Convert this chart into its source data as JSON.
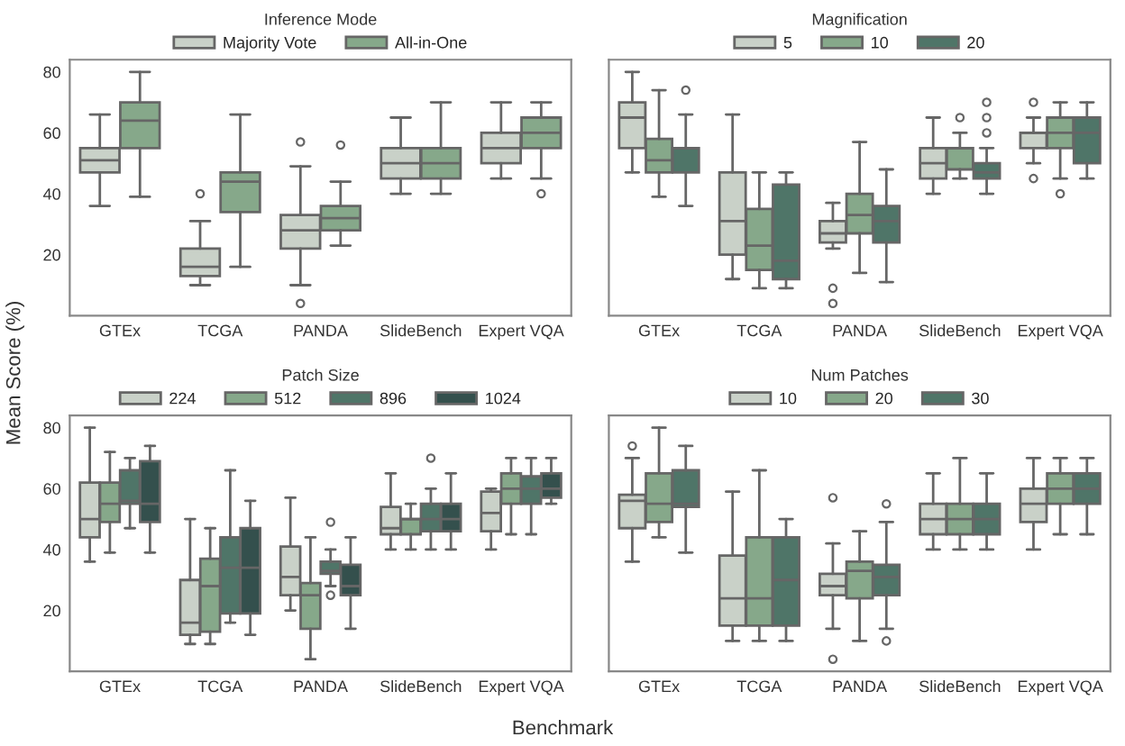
{
  "chart_data": [
    {
      "type": "box",
      "legend_title": "Inference Mode",
      "xlabel": "Benchmark",
      "ylabel": "Mean Score (%)",
      "categories": [
        "GTEx",
        "TCGA",
        "PANDA",
        "SlideBench",
        "Expert VQA"
      ],
      "ylim": [
        0,
        84
      ],
      "yticks": [
        20,
        40,
        60,
        80
      ],
      "grid": false,
      "legend": "top",
      "series": [
        {
          "name": "Majority Vote",
          "color": "#c9d1c8",
          "boxes": [
            {
              "low": 36,
              "q1": 47,
              "median": 51,
              "q3": 55,
              "high": 66
            },
            {
              "low": 10,
              "q1": 13,
              "median": 16,
              "q3": 22,
              "high": 31,
              "outliers": [
                40
              ]
            },
            {
              "low": 10,
              "q1": 22,
              "median": 28,
              "q3": 33,
              "high": 49,
              "outliers": [
                57,
                4
              ]
            },
            {
              "low": 40,
              "q1": 45,
              "median": 50,
              "q3": 55,
              "high": 65
            },
            {
              "low": 45,
              "q1": 50,
              "median": 55,
              "q3": 60,
              "high": 70
            }
          ]
        },
        {
          "name": "All-in-One",
          "color": "#86a88a",
          "boxes": [
            {
              "low": 39,
              "q1": 55,
              "median": 64,
              "q3": 70,
              "high": 80
            },
            {
              "low": 16,
              "q1": 34,
              "median": 44,
              "q3": 47,
              "high": 66
            },
            {
              "low": 23,
              "q1": 28,
              "median": 32,
              "q3": 36,
              "high": 44,
              "outliers": [
                56
              ]
            },
            {
              "low": 40,
              "q1": 45,
              "median": 50,
              "q3": 55,
              "high": 70
            },
            {
              "low": 45,
              "q1": 55,
              "median": 60,
              "q3": 65,
              "high": 70,
              "outliers": [
                40
              ]
            }
          ]
        }
      ]
    },
    {
      "type": "box",
      "legend_title": "Magnification",
      "categories": [
        "GTEx",
        "TCGA",
        "PANDA",
        "SlideBench",
        "Expert VQA"
      ],
      "ylim": [
        0,
        84
      ],
      "yticks": [
        20,
        40,
        60,
        80
      ],
      "grid": false,
      "legend": "top",
      "tick_labels": "x",
      "series": [
        {
          "name": "5",
          "color": "#c9d1c8",
          "boxes": [
            {
              "low": 47,
              "q1": 55,
              "median": 65,
              "q3": 70,
              "high": 80
            },
            {
              "low": 12,
              "q1": 20,
              "median": 31,
              "q3": 47,
              "high": 66
            },
            {
              "low": 22,
              "q1": 24,
              "median": 27,
              "q3": 31,
              "high": 37,
              "outliers": [
                9,
                4
              ]
            },
            {
              "low": 40,
              "q1": 45,
              "median": 50,
              "q3": 55,
              "high": 65
            },
            {
              "low": 50,
              "q1": 55,
              "median": 60,
              "q3": 60,
              "high": 65,
              "outliers": [
                70,
                45
              ]
            }
          ]
        },
        {
          "name": "10",
          "color": "#86a88a",
          "boxes": [
            {
              "low": 39,
              "q1": 47,
              "median": 51,
              "q3": 58,
              "high": 74
            },
            {
              "low": 9,
              "q1": 15,
              "median": 23,
              "q3": 35,
              "high": 47
            },
            {
              "low": 14,
              "q1": 27,
              "median": 33,
              "q3": 40,
              "high": 57
            },
            {
              "low": 45,
              "q1": 48,
              "median": 55,
              "q3": 55,
              "high": 60,
              "outliers": [
                65
              ]
            },
            {
              "low": 45,
              "q1": 55,
              "median": 60,
              "q3": 65,
              "high": 70,
              "outliers": [
                40
              ]
            }
          ]
        },
        {
          "name": "20",
          "color": "#4f7568",
          "boxes": [
            {
              "low": 36,
              "q1": 47,
              "median": 55,
              "q3": 55,
              "high": 66,
              "outliers": [
                74
              ]
            },
            {
              "low": 9,
              "q1": 12,
              "median": 18,
              "q3": 43,
              "high": 47
            },
            {
              "low": 11,
              "q1": 24,
              "median": 31,
              "q3": 36,
              "high": 48
            },
            {
              "low": 40,
              "q1": 45,
              "median": 47,
              "q3": 50,
              "high": 55,
              "outliers": [
                60,
                65,
                70
              ]
            },
            {
              "low": 45,
              "q1": 50,
              "median": 60,
              "q3": 65,
              "high": 70
            }
          ]
        }
      ]
    },
    {
      "type": "box",
      "legend_title": "Patch Size",
      "categories": [
        "GTEx",
        "TCGA",
        "PANDA",
        "SlideBench",
        "Expert VQA"
      ],
      "ylim": [
        0,
        84
      ],
      "yticks": [
        20,
        40,
        60,
        80
      ],
      "grid": false,
      "legend": "top",
      "series": [
        {
          "name": "224",
          "color": "#c9d1c8",
          "boxes": [
            {
              "low": 36,
              "q1": 44,
              "median": 50,
              "q3": 62,
              "high": 80
            },
            {
              "low": 9,
              "q1": 12,
              "median": 16,
              "q3": 30,
              "high": 50
            },
            {
              "low": 20,
              "q1": 25,
              "median": 31,
              "q3": 41,
              "high": 57
            },
            {
              "low": 40,
              "q1": 45,
              "median": 47,
              "q3": 54,
              "high": 65
            },
            {
              "low": 40,
              "q1": 46,
              "median": 52,
              "q3": 59,
              "high": 60
            }
          ]
        },
        {
          "name": "512",
          "color": "#86a88a",
          "boxes": [
            {
              "low": 39,
              "q1": 49,
              "median": 55,
              "q3": 62,
              "high": 72
            },
            {
              "low": 9,
              "q1": 13,
              "median": 28,
              "q3": 37,
              "high": 47
            },
            {
              "low": 4,
              "q1": 14,
              "median": 25,
              "q3": 29,
              "high": 44
            },
            {
              "low": 40,
              "q1": 45,
              "median": 50,
              "q3": 50,
              "high": 55
            },
            {
              "low": 45,
              "q1": 55,
              "median": 60,
              "q3": 65,
              "high": 70
            }
          ]
        },
        {
          "name": "896",
          "color": "#4f7568",
          "boxes": [
            {
              "low": 47,
              "q1": 55,
              "median": 56,
              "q3": 66,
              "high": 70
            },
            {
              "low": 16,
              "q1": 19,
              "median": 34,
              "q3": 44,
              "high": 66
            },
            {
              "low": 28,
              "q1": 32,
              "median": 33,
              "q3": 36,
              "high": 40,
              "outliers": [
                49,
                25
              ]
            },
            {
              "low": 40,
              "q1": 46,
              "median": 50,
              "q3": 55,
              "high": 60,
              "outliers": [
                70
              ]
            },
            {
              "low": 45,
              "q1": 55,
              "median": 60,
              "q3": 64,
              "high": 70
            }
          ]
        },
        {
          "name": "1024",
          "color": "#34504d",
          "boxes": [
            {
              "low": 39,
              "q1": 49,
              "median": 55,
              "q3": 69,
              "high": 74
            },
            {
              "low": 12,
              "q1": 19,
              "median": 34,
              "q3": 47,
              "high": 56
            },
            {
              "low": 14,
              "q1": 25,
              "median": 28,
              "q3": 35,
              "high": 44
            },
            {
              "low": 40,
              "q1": 46,
              "median": 50,
              "q3": 55,
              "high": 65
            },
            {
              "low": 55,
              "q1": 57,
              "median": 60,
              "q3": 65,
              "high": 70
            }
          ]
        }
      ]
    },
    {
      "type": "box",
      "legend_title": "Num Patches",
      "categories": [
        "GTEx",
        "TCGA",
        "PANDA",
        "SlideBench",
        "Expert VQA"
      ],
      "ylim": [
        0,
        84
      ],
      "yticks": [
        20,
        40,
        60,
        80
      ],
      "grid": false,
      "legend": "top",
      "tick_labels": "x",
      "series": [
        {
          "name": "10",
          "color": "#c9d1c8",
          "boxes": [
            {
              "low": 36,
              "q1": 47,
              "median": 56,
              "q3": 58,
              "high": 70,
              "outliers": [
                74
              ]
            },
            {
              "low": 10,
              "q1": 15,
              "median": 24,
              "q3": 38,
              "high": 59
            },
            {
              "low": 14,
              "q1": 25,
              "median": 28,
              "q3": 32,
              "high": 42,
              "outliers": [
                57,
                4
              ]
            },
            {
              "low": 40,
              "q1": 45,
              "median": 50,
              "q3": 55,
              "high": 65
            },
            {
              "low": 40,
              "q1": 49,
              "median": 55,
              "q3": 60,
              "high": 70
            }
          ]
        },
        {
          "name": "20",
          "color": "#86a88a",
          "boxes": [
            {
              "low": 44,
              "q1": 49,
              "median": 55,
              "q3": 65,
              "high": 80
            },
            {
              "low": 10,
              "q1": 15,
              "median": 24,
              "q3": 44,
              "high": 66
            },
            {
              "low": 10,
              "q1": 24,
              "median": 33,
              "q3": 36,
              "high": 46
            },
            {
              "low": 40,
              "q1": 45,
              "median": 50,
              "q3": 55,
              "high": 70
            },
            {
              "low": 45,
              "q1": 55,
              "median": 60,
              "q3": 65,
              "high": 70
            }
          ]
        },
        {
          "name": "30",
          "color": "#4f7568",
          "boxes": [
            {
              "low": 39,
              "q1": 54,
              "median": 55,
              "q3": 66,
              "high": 74
            },
            {
              "low": 10,
              "q1": 15,
              "median": 30,
              "q3": 44,
              "high": 50
            },
            {
              "low": 14,
              "q1": 25,
              "median": 31,
              "q3": 35,
              "high": 49,
              "outliers": [
                55,
                10
              ]
            },
            {
              "low": 40,
              "q1": 45,
              "median": 50,
              "q3": 55,
              "high": 65
            },
            {
              "low": 45,
              "q1": 55,
              "median": 60,
              "q3": 65,
              "high": 70
            }
          ]
        }
      ]
    }
  ]
}
